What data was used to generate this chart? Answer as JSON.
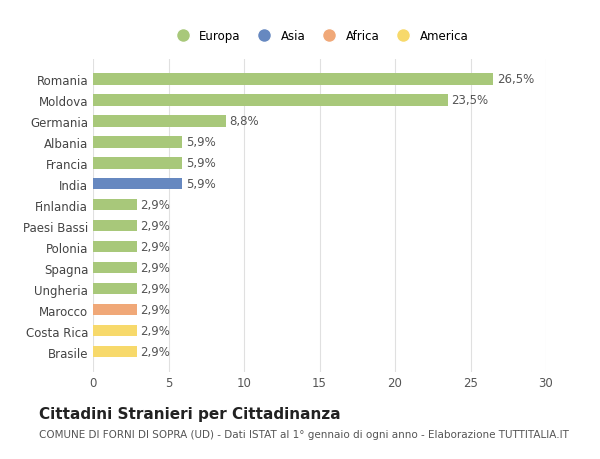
{
  "categories": [
    "Brasile",
    "Costa Rica",
    "Marocco",
    "Ungheria",
    "Spagna",
    "Polonia",
    "Paesi Bassi",
    "Finlandia",
    "India",
    "Francia",
    "Albania",
    "Germania",
    "Moldova",
    "Romania"
  ],
  "values": [
    2.9,
    2.9,
    2.9,
    2.9,
    2.9,
    2.9,
    2.9,
    2.9,
    5.9,
    5.9,
    5.9,
    8.8,
    23.5,
    26.5
  ],
  "labels": [
    "2,9%",
    "2,9%",
    "2,9%",
    "2,9%",
    "2,9%",
    "2,9%",
    "2,9%",
    "2,9%",
    "5,9%",
    "5,9%",
    "5,9%",
    "8,8%",
    "23,5%",
    "26,5%"
  ],
  "colors": [
    "#f7d96b",
    "#f7d96b",
    "#f0a878",
    "#a8c87a",
    "#a8c87a",
    "#a8c87a",
    "#a8c87a",
    "#a8c87a",
    "#6688c0",
    "#a8c87a",
    "#a8c87a",
    "#a8c87a",
    "#a8c87a",
    "#a8c87a"
  ],
  "legend_labels": [
    "Europa",
    "Asia",
    "Africa",
    "America"
  ],
  "legend_colors": [
    "#a8c87a",
    "#6688c0",
    "#f0a878",
    "#f7d96b"
  ],
  "title": "Cittadini Stranieri per Cittadinanza",
  "subtitle": "COMUNE DI FORNI DI SOPRA (UD) - Dati ISTAT al 1° gennaio di ogni anno - Elaborazione TUTTITALIA.IT",
  "xlim": [
    0,
    30
  ],
  "xticks": [
    0,
    5,
    10,
    15,
    20,
    25,
    30
  ],
  "bg_color": "#ffffff",
  "grid_color": "#e0e0e0",
  "bar_height": 0.55,
  "label_fontsize": 8.5,
  "tick_fontsize": 8.5,
  "title_fontsize": 11,
  "subtitle_fontsize": 7.5
}
